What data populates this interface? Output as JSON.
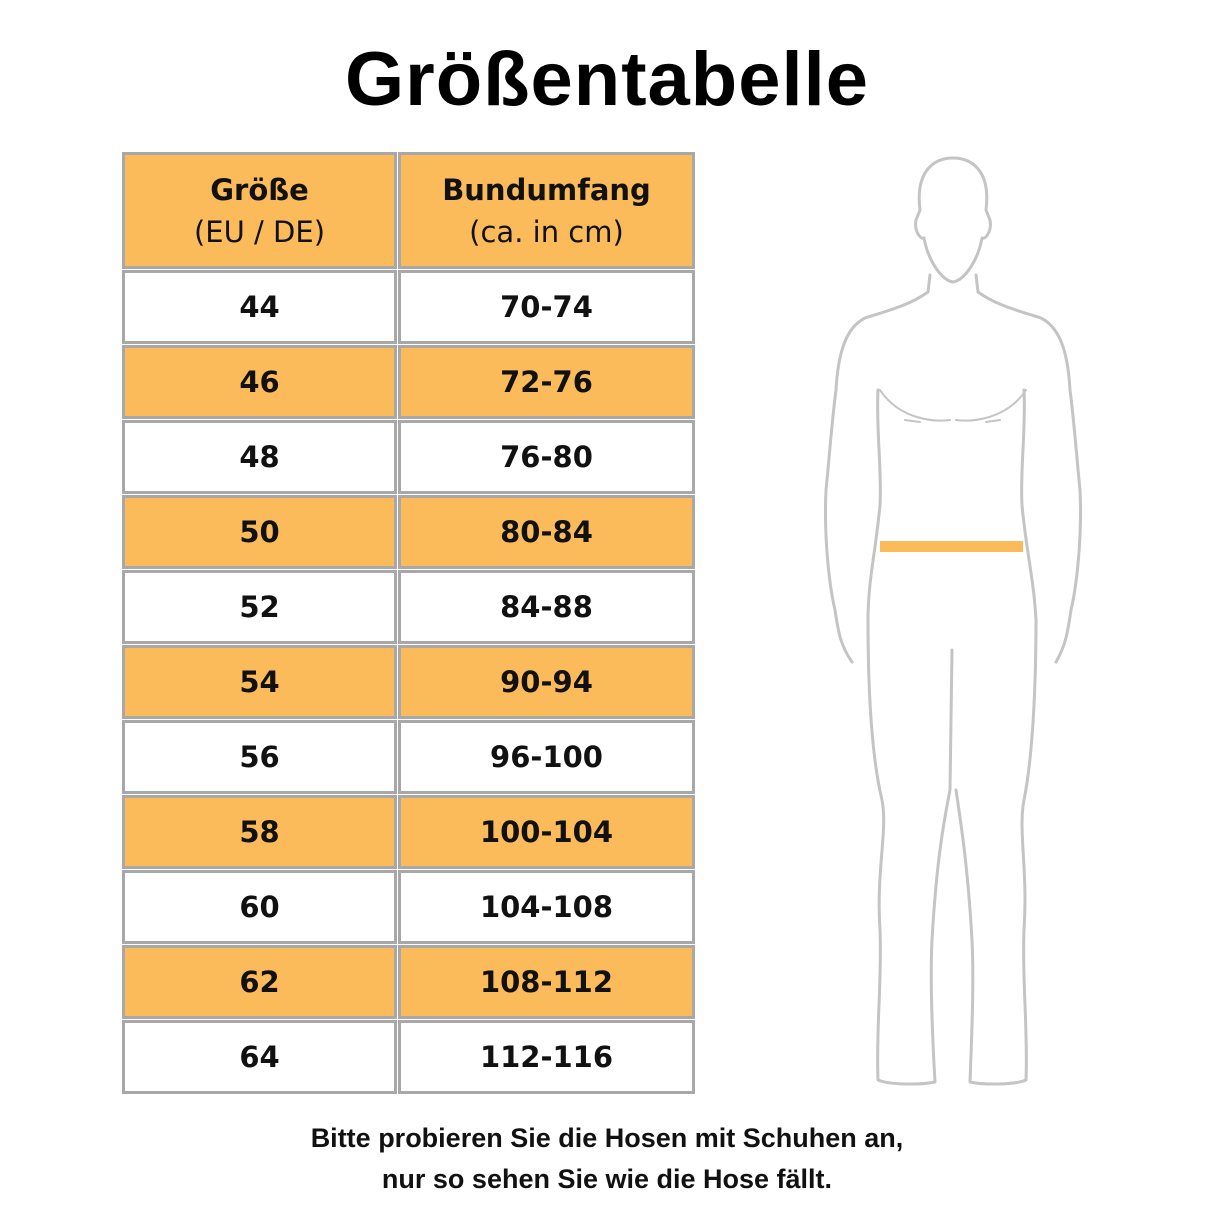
{
  "title": "Größentabelle",
  "table": {
    "headers": [
      {
        "main": "Größe",
        "sub": "(EU / DE)"
      },
      {
        "main": "Bundumfang",
        "sub": "(ca. in cm)"
      }
    ],
    "rows": [
      [
        "44",
        "70-74"
      ],
      [
        "46",
        "72-76"
      ],
      [
        "48",
        "76-80"
      ],
      [
        "50",
        "80-84"
      ],
      [
        "52",
        "84-88"
      ],
      [
        "54",
        "90-94"
      ],
      [
        "56",
        "96-100"
      ],
      [
        "58",
        "100-104"
      ],
      [
        "60",
        "104-108"
      ],
      [
        "62",
        "108-112"
      ],
      [
        "64",
        "112-116"
      ]
    ]
  },
  "note": {
    "line1": "Bitte probieren Sie die Hosen mit Schuhen an,",
    "line2": "nur so sehen Sie wie die Hose fällt."
  },
  "colors": {
    "accent": "#fbbb5a",
    "border": "#a8a8a8",
    "outline": "#c4c4c4"
  },
  "figure": {
    "icon": "human-body-outline-icon",
    "highlight": "waist-band"
  }
}
